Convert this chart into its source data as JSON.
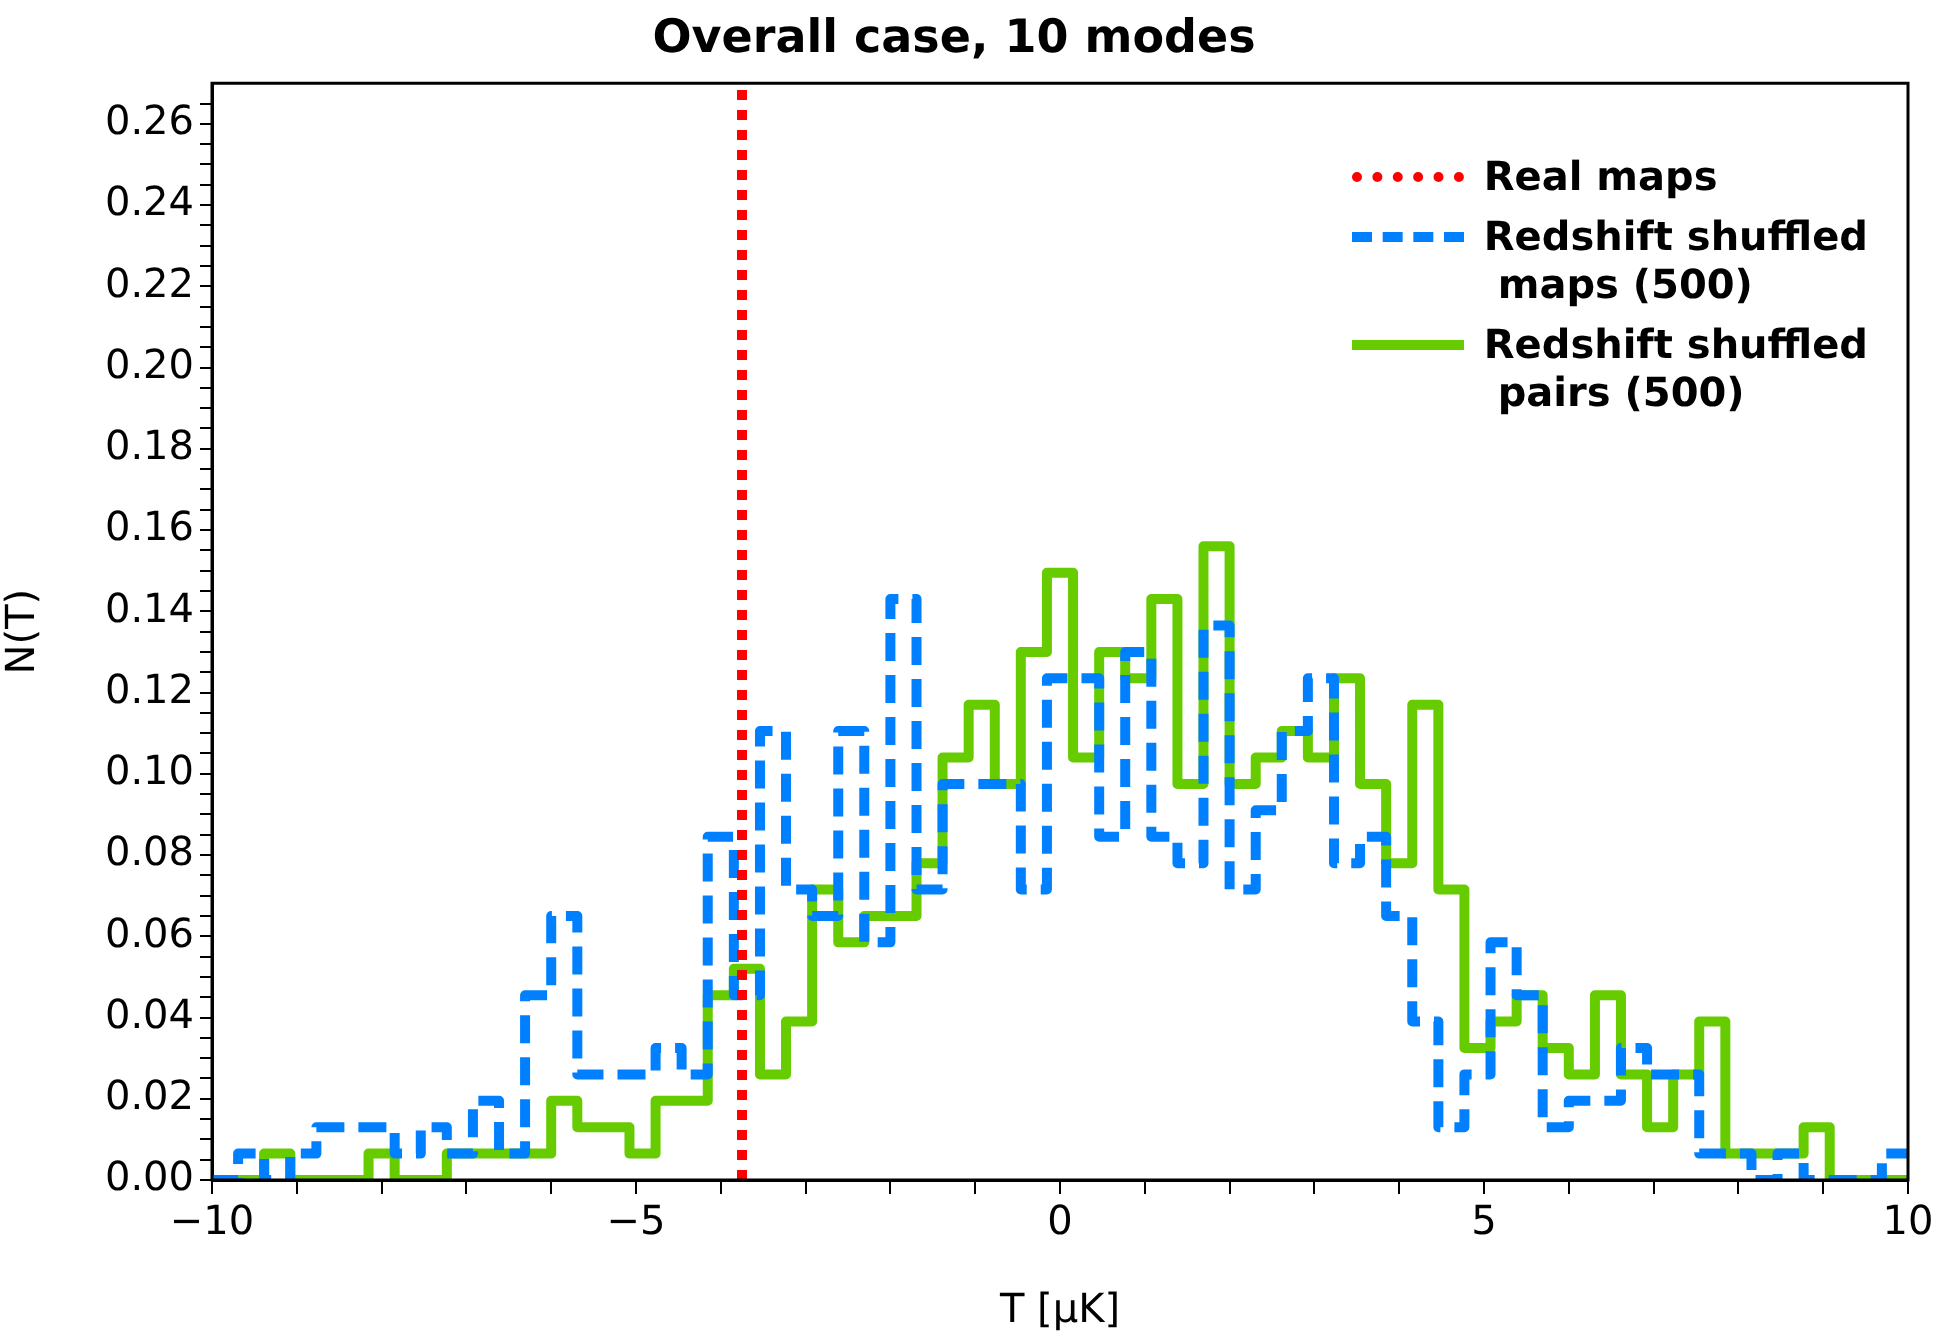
{
  "chart_data": {
    "type": "histogram",
    "title": "Overall case, 10 modes",
    "xlabel": "T [μK]",
    "ylabel": "N(T)",
    "legend": "top right",
    "bins": [
      -10,
      -9.692,
      -9.385,
      -9.077,
      -8.769,
      -8.462,
      -8.154,
      -7.846,
      -7.538,
      -7.231,
      -6.923,
      -6.615,
      -6.308,
      -6,
      -5.692,
      -5.385,
      -5.077,
      -4.769,
      -4.462,
      -4.154,
      -3.846,
      -3.538,
      -3.231,
      -2.923,
      -2.615,
      -2.308,
      -2,
      -1.692,
      -1.385,
      -1.077,
      -0.769,
      -0.462,
      -0.154,
      0.154,
      0.462,
      0.769,
      1.077,
      1.385,
      1.692,
      2,
      2.308,
      2.615,
      2.923,
      3.231,
      3.538,
      3.846,
      4.154,
      4.462,
      4.769,
      5.077,
      5.385,
      5.692,
      6,
      6.308,
      6.615,
      6.923,
      7.231,
      7.538,
      7.846,
      8.154,
      8.462,
      8.769,
      9.077,
      9.385,
      9.692,
      10
    ],
    "series": [
      {
        "name": "Real maps",
        "type": "line",
        "color": "#ff0000",
        "line_style": "dotted",
        "x": [
          -3.75,
          -3.75
        ],
        "values": [
          0,
          0.27
        ]
      },
      {
        "name": "Redshift shuffled\n maps (500)",
        "color": "#0080ff",
        "line_style": "dashed",
        "values": [
          0,
          0.0065,
          0,
          0.0065,
          0.013,
          0.013,
          0.013,
          0.0065,
          0.013,
          0.0065,
          0.0195,
          0.0065,
          0.0455,
          0.065,
          0.026,
          0.026,
          0.026,
          0.0325,
          0.026,
          0.0845,
          0.0455,
          0.1105,
          0.0715,
          0.065,
          0.1105,
          0.0585,
          0.143,
          0.0715,
          0.0975,
          0.0975,
          0.0975,
          0.0715,
          0.1235,
          0.1235,
          0.0845,
          0.13,
          0.0845,
          0.078,
          0.1365,
          0.0715,
          0.091,
          0.1105,
          0.1235,
          0.078,
          0.0845,
          0.065,
          0.039,
          0.013,
          0.026,
          0.0585,
          0.0455,
          0.013,
          0.0195,
          0.0195,
          0.0325,
          0.026,
          0.026,
          0.0065,
          0.0065,
          0,
          0.0065,
          0,
          0,
          0,
          0.0065
        ]
      },
      {
        "name": "Redshift shuffled\n pairs (500)",
        "color": "#66cc00",
        "line_style": "solid",
        "values": [
          0,
          0,
          0.0065,
          0,
          0,
          0,
          0.0065,
          0,
          0,
          0.0065,
          0.0065,
          0.0065,
          0.0065,
          0.0195,
          0.013,
          0.013,
          0.0065,
          0.0195,
          0.0195,
          0.0455,
          0.052,
          0.026,
          0.039,
          0.0715,
          0.0585,
          0.065,
          0.065,
          0.078,
          0.104,
          0.117,
          0.0975,
          0.13,
          0.1495,
          0.104,
          0.13,
          0.1235,
          0.143,
          0.0975,
          0.156,
          0.0975,
          0.104,
          0.1105,
          0.104,
          0.1235,
          0.0975,
          0.078,
          0.117,
          0.0715,
          0.0325,
          0.039,
          0.0455,
          0.0325,
          0.026,
          0.0455,
          0.026,
          0.013,
          0.026,
          0.039,
          0.0065,
          0.0065,
          0.0065,
          0.013,
          0,
          0,
          0
        ]
      }
    ],
    "xlim": [
      -10,
      10
    ],
    "xticks": [
      {
        "value": -10,
        "label": "−10"
      },
      {
        "value": -9,
        "label": null
      },
      {
        "value": -8,
        "label": null
      },
      {
        "value": -7,
        "label": null
      },
      {
        "value": -6,
        "label": null
      },
      {
        "value": -5,
        "label": "−5"
      },
      {
        "value": -4,
        "label": null
      },
      {
        "value": -3,
        "label": null
      },
      {
        "value": -2,
        "label": null
      },
      {
        "value": -1,
        "label": null
      },
      0,
      {
        "value": 1,
        "label": null
      },
      {
        "value": 2,
        "label": null
      },
      {
        "value": 3,
        "label": null
      },
      {
        "value": 4,
        "label": null
      },
      5,
      {
        "value": 6,
        "label": null
      },
      {
        "value": 7,
        "label": null
      },
      {
        "value": 8,
        "label": null
      },
      {
        "value": 9,
        "label": null
      },
      10
    ],
    "ylim": [
      0,
      0.27
    ],
    "yticks": [
      {
        "value": 0,
        "label": "0.00"
      },
      {
        "value": 0.005,
        "label": null
      },
      {
        "value": 0.01,
        "label": null
      },
      {
        "value": 0.015,
        "label": null
      },
      {
        "value": 0.02,
        "label": "0.02"
      },
      {
        "value": 0.025,
        "label": null
      },
      {
        "value": 0.03,
        "label": null
      },
      {
        "value": 0.035,
        "label": null
      },
      {
        "value": 0.04,
        "label": "0.04"
      },
      {
        "value": 0.045,
        "label": null
      },
      {
        "value": 0.05,
        "label": null
      },
      {
        "value": 0.055,
        "label": null
      },
      {
        "value": 0.06,
        "label": "0.06"
      },
      {
        "value": 0.065,
        "label": null
      },
      {
        "value": 0.07,
        "label": null
      },
      {
        "value": 0.075,
        "label": null
      },
      {
        "value": 0.08,
        "label": "0.08"
      },
      {
        "value": 0.085,
        "label": null
      },
      {
        "value": 0.09,
        "label": null
      },
      {
        "value": 0.095,
        "label": null
      },
      {
        "value": 0.1,
        "label": "0.10"
      },
      {
        "value": 0.105,
        "label": null
      },
      {
        "value": 0.11,
        "label": null
      },
      {
        "value": 0.115,
        "label": null
      },
      {
        "value": 0.12,
        "label": "0.12"
      },
      {
        "value": 0.125,
        "label": null
      },
      {
        "value": 0.13,
        "label": null
      },
      {
        "value": 0.135,
        "label": null
      },
      {
        "value": 0.14,
        "label": "0.14"
      },
      {
        "value": 0.145,
        "label": null
      },
      {
        "value": 0.15,
        "label": null
      },
      {
        "value": 0.155,
        "label": null
      },
      {
        "value": 0.16,
        "label": "0.16"
      },
      {
        "value": 0.165,
        "label": null
      },
      {
        "value": 0.17,
        "label": null
      },
      {
        "value": 0.175,
        "label": null
      },
      {
        "value": 0.18,
        "label": "0.18"
      },
      {
        "value": 0.185,
        "label": null
      },
      {
        "value": 0.19,
        "label": null
      },
      {
        "value": 0.195,
        "label": null
      },
      {
        "value": 0.2,
        "label": "0.20"
      },
      {
        "value": 0.205,
        "label": null
      },
      {
        "value": 0.21,
        "label": null
      },
      {
        "value": 0.215,
        "label": null
      },
      {
        "value": 0.22,
        "label": "0.22"
      },
      {
        "value": 0.225,
        "label": null
      },
      {
        "value": 0.23,
        "label": null
      },
      {
        "value": 0.235,
        "label": null
      },
      {
        "value": 0.24,
        "label": "0.24"
      },
      {
        "value": 0.245,
        "label": null
      },
      {
        "value": 0.25,
        "label": null
      },
      {
        "value": 0.255,
        "label": null
      },
      {
        "value": 0.26,
        "label": "0.26"
      },
      {
        "value": 0.265,
        "label": null
      }
    ]
  }
}
